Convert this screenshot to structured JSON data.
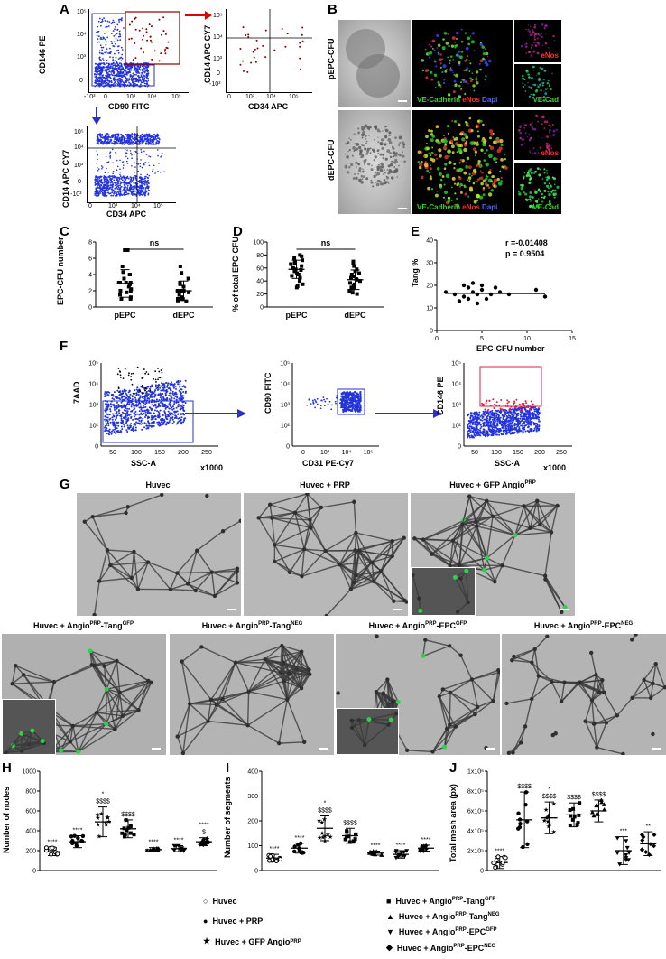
{
  "panels": {
    "A": {
      "letter": "A",
      "plot1": {
        "ylabel": "CD146 PE",
        "xlabel": "CD90 FITC",
        "yticks": [
          "10⁵",
          "10⁴",
          "10³",
          "0"
        ],
        "xticks": [
          "-10³",
          "0",
          "10³",
          "10⁴",
          "10⁵"
        ]
      },
      "plot2": {
        "ylabel": "CD14 APC CY7",
        "xlabel": "CD34 APC",
        "yticks": [
          "10⁵",
          "10⁴",
          "10³",
          "0",
          "-10³"
        ],
        "xticks": [
          "0",
          "10³",
          "10⁴",
          "10⁵"
        ]
      },
      "plot3": {
        "ylabel": "CD14 APC CY7",
        "xlabel": "CD34 APC",
        "yticks": [
          "10⁵",
          "10⁴",
          "10³",
          "0",
          "-10³"
        ],
        "xticks": [
          "0",
          "10³",
          "10⁴",
          "10⁵"
        ]
      }
    },
    "B": {
      "letter": "B",
      "row1_label": "pEPC-CFU",
      "row2_label": "dEPC-CFU",
      "merge_label_parts": [
        "VE-Cadherin",
        "eNos",
        "Dapi"
      ],
      "enos_label": "eNos",
      "vecad_label": "VE-Cad"
    },
    "C": {
      "letter": "C",
      "ylabel": "EPC-CFU number",
      "sig": "ns",
      "categories": [
        "pEPC",
        "dEPC"
      ],
      "yticks": [
        "8",
        "6",
        "4",
        "2",
        "0"
      ]
    },
    "D": {
      "letter": "D",
      "ylabel": "% of total EPC-CFU",
      "sig": "ns",
      "categories": [
        "pEPC",
        "dEPC"
      ],
      "yticks": [
        "100",
        "80",
        "60",
        "40",
        "20",
        "0"
      ]
    },
    "E": {
      "letter": "E",
      "ylabel": "Tang %",
      "xlabel": "EPC-CFU number",
      "r_text": "r =-0.01408",
      "p_text": "p = 0.9504",
      "yticks": [
        "40",
        "30",
        "20",
        "10",
        "0"
      ],
      "xticks": [
        "0",
        "5",
        "10",
        "15"
      ]
    },
    "F": {
      "letter": "F",
      "plot1": {
        "ylabel": "7AAD",
        "xlabel": "SSC-A",
        "xunit": "x1000",
        "yticks": [
          "10⁵",
          "10⁴",
          "10³",
          "10²",
          "0"
        ],
        "xticks": [
          "50",
          "100",
          "150",
          "200",
          "250"
        ]
      },
      "plot2": {
        "ylabel": "CD90 FITC",
        "xlabel": "CD31 PE-Cy7",
        "yticks": [
          "10⁵",
          "10⁴",
          "10³",
          "10²",
          "0"
        ],
        "xticks": [
          "0",
          "10³",
          "10⁴",
          "10⁵"
        ]
      },
      "plot3": {
        "ylabel": "CD146 PE",
        "xlabel": "SSC-A",
        "xunit": "x1000",
        "yticks": [
          "10⁵",
          "10⁴",
          "10³",
          "10²",
          "0"
        ],
        "xticks": [
          "50",
          "100",
          "150",
          "200",
          "250"
        ]
      }
    },
    "G": {
      "letter": "G",
      "titles_top": [
        "Huvec",
        "Huvec + PRP",
        "Huvec + GFP Angio"
      ],
      "titles_top_sup": [
        "",
        "",
        "PRP"
      ],
      "titles_bottom": [
        {
          "a": "Huvec +  Angio",
          "sup1": "PRP",
          "b": "-Tang",
          "sup2": "GFP"
        },
        {
          "a": "Huvec +  Angio",
          "sup1": "PRP",
          "b": "-Tang",
          "sup2": "NEG"
        },
        {
          "a": "Huvec +  Angio",
          "sup1": "PRP",
          "b": "-EPC",
          "sup2": "GFP"
        },
        {
          "a": "Huvec +  Angio",
          "sup1": "PRP",
          "b": "-EPC",
          "sup2": "NEG"
        }
      ]
    },
    "H": {
      "letter": "H",
      "ylabel": "Number of nodes",
      "yticks": [
        "1000",
        "800",
        "600",
        "400",
        "200",
        "0"
      ],
      "annotations": [
        "****",
        "****",
        "$$$$",
        "$$$$",
        "****",
        "****",
        "$"
      ],
      "stars": [
        "",
        "",
        "*",
        "",
        "",
        "",
        "****"
      ]
    },
    "I": {
      "letter": "I",
      "ylabel": "Number of segments",
      "yticks": [
        "400",
        "300",
        "200",
        "100",
        "0"
      ],
      "annotations": [
        "****",
        "****",
        "$$$$",
        "$$$$",
        "****",
        "****",
        "****"
      ],
      "stars": [
        "",
        "",
        "*",
        "",
        "",
        "",
        ""
      ]
    },
    "J": {
      "letter": "J",
      "ylabel": "Total mesh area (px)",
      "yticks": [
        "1x10⁶",
        "8x10⁵",
        "6x10⁵",
        "4x10⁵",
        "2x10⁵",
        "0"
      ],
      "annotations": [
        "****",
        "$$$$",
        "$$$$",
        "$$$$",
        "$$$$",
        "***",
        "**"
      ],
      "stars": [
        "",
        "",
        "*",
        "",
        "",
        "",
        ""
      ]
    }
  },
  "legend": {
    "left": [
      {
        "symbol": "○",
        "text": "Huvec",
        "sup": ""
      },
      {
        "symbol": "●",
        "text": "Huvec + PRP",
        "sup": ""
      },
      {
        "symbol": "★",
        "text": "Huvec + GFP Angio",
        "sup": "PRP"
      }
    ],
    "right": [
      {
        "symbol": "■",
        "a": "Huvec + Angio",
        "sup1": "PRP",
        "b": "-Tang",
        "sup2": "GFP"
      },
      {
        "symbol": "▲",
        "a": "Huvec + Angio",
        "sup1": "PRP",
        "b": "-Tang",
        "sup2": "NEG"
      },
      {
        "symbol": "▼",
        "a": "Huvec + Angio",
        "sup1": "PRP",
        "b": "-EPC",
        "sup2": "GFP"
      },
      {
        "symbol": "◆",
        "a": "Huvec + Angio",
        "sup1": "PRP",
        "b": "-EPC",
        "sup2": "NEG"
      }
    ]
  },
  "chart_data": [
    {
      "panel": "C",
      "type": "scatter",
      "ylabel": "EPC-CFU number",
      "categories": [
        "pEPC",
        "dEPC"
      ],
      "ylim": [
        0,
        8
      ],
      "means": [
        2.9,
        2.0
      ],
      "sd": [
        1.7,
        1.2
      ],
      "points": [
        [
          7,
          7,
          5,
          4.3,
          4,
          4,
          3.5,
          3,
          3,
          3,
          3,
          2.8,
          2.5,
          2.2,
          2,
          2,
          1.8,
          1.5,
          1.2,
          1,
          1
        ],
        [
          5,
          4.2,
          3.5,
          3,
          2.8,
          2.5,
          2,
          2,
          2,
          1.8,
          1.5,
          1.2,
          1,
          1,
          1,
          1,
          1,
          1,
          0.8,
          0.7
        ]
      ]
    },
    {
      "panel": "D",
      "type": "scatter",
      "ylabel": "% of total EPC-CFU",
      "categories": [
        "pEPC",
        "dEPC"
      ],
      "ylim": [
        0,
        100
      ],
      "means": [
        58,
        42
      ],
      "sd": [
        14,
        15
      ],
      "points": [
        [
          80,
          78,
          75,
          72,
          70,
          68,
          66,
          63,
          60,
          58,
          57,
          55,
          52,
          50,
          48,
          45,
          40,
          35,
          32,
          30
        ],
        [
          70,
          67,
          63,
          58,
          55,
          52,
          50,
          47,
          45,
          43,
          42,
          40,
          37,
          35,
          32,
          30,
          28,
          25,
          22,
          20
        ]
      ]
    },
    {
      "panel": "E",
      "type": "scatter",
      "xlabel": "EPC-CFU number",
      "ylabel": "Tang %",
      "xlim": [
        0,
        15
      ],
      "ylim": [
        0,
        40
      ],
      "x": [
        1,
        2,
        2.5,
        3,
        3,
        3.5,
        3.5,
        4,
        4,
        4.5,
        4.5,
        5,
        5,
        5.5,
        6,
        6.5,
        7,
        8,
        11,
        12
      ],
      "y": [
        17,
        16,
        13,
        20,
        15,
        19,
        14,
        21,
        17,
        16,
        12,
        20,
        18,
        14,
        16,
        19,
        17,
        16,
        18,
        15
      ]
    },
    {
      "panel": "H",
      "type": "scatter",
      "ylabel": "Number of nodes",
      "ylim": [
        0,
        1000
      ],
      "categories": [
        "Huvec",
        "Huvec + PRP",
        "Huvec + GFP AngioPRP",
        "AngioPRP-TangGFP",
        "AngioPRP-TangNEG",
        "AngioPRP-EPCGFP",
        "AngioPRP-EPCNEG"
      ],
      "means": [
        190,
        290,
        490,
        420,
        210,
        220,
        290
      ],
      "sd": [
        40,
        60,
        150,
        90,
        20,
        30,
        40
      ]
    },
    {
      "panel": "I",
      "type": "scatter",
      "ylabel": "Number of segments",
      "ylim": [
        0,
        400
      ],
      "categories": [
        "Huvec",
        "Huvec + PRP",
        "Huvec + GFP AngioPRP",
        "AngioPRP-TangGFP",
        "AngioPRP-TangNEG",
        "AngioPRP-EPCGFP",
        "AngioPRP-EPCNEG"
      ],
      "means": [
        50,
        90,
        170,
        140,
        70,
        65,
        90
      ],
      "sd": [
        15,
        20,
        50,
        30,
        8,
        15,
        12
      ]
    },
    {
      "panel": "J",
      "type": "scatter",
      "ylabel": "Total mesh area (px)",
      "ylim": [
        0,
        1000000
      ],
      "categories": [
        "Huvec",
        "Huvec + PRP",
        "Huvec + GFP AngioPRP",
        "AngioPRP-TangGFP",
        "AngioPRP-TangNEG",
        "AngioPRP-EPCGFP",
        "AngioPRP-EPCNEG"
      ],
      "means": [
        80000,
        510000,
        530000,
        560000,
        600000,
        200000,
        270000
      ],
      "sd": [
        60000,
        280000,
        160000,
        120000,
        110000,
        140000,
        120000
      ]
    }
  ]
}
